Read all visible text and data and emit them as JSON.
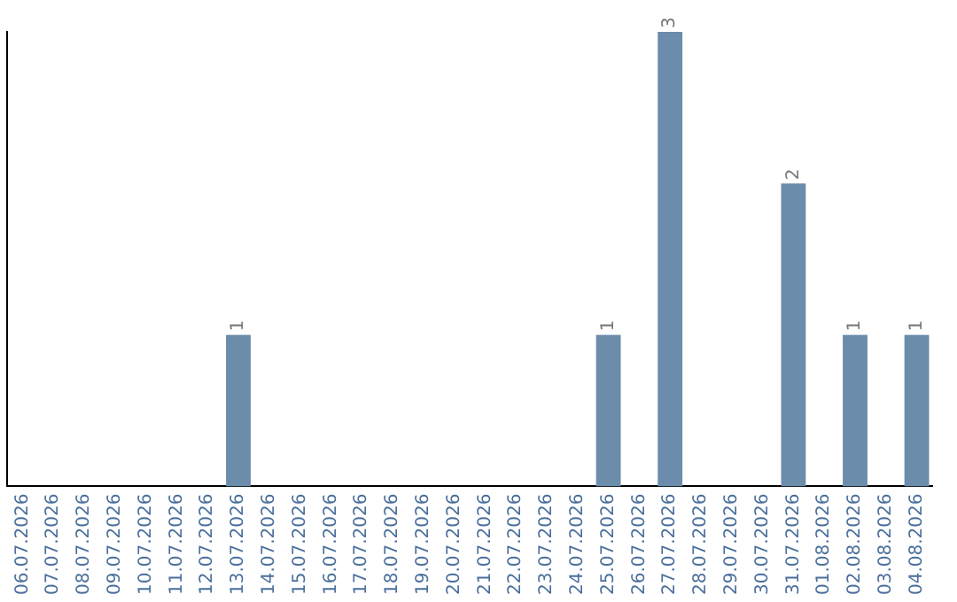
{
  "chart_data": {
    "type": "bar",
    "categories": [
      "06.07.2026",
      "07.07.2026",
      "08.07.2026",
      "09.07.2026",
      "10.07.2026",
      "11.07.2026",
      "12.07.2026",
      "13.07.2026",
      "14.07.2026",
      "15.07.2026",
      "16.07.2026",
      "17.07.2026",
      "18.07.2026",
      "19.07.2026",
      "20.07.2026",
      "21.07.2026",
      "22.07.2026",
      "23.07.2026",
      "24.07.2026",
      "25.07.2026",
      "26.07.2026",
      "27.07.2026",
      "28.07.2026",
      "29.07.2026",
      "30.07.2026",
      "31.07.2026",
      "01.08.2026",
      "02.08.2026",
      "03.08.2026",
      "04.08.2026"
    ],
    "values": [
      0,
      0,
      0,
      0,
      0,
      0,
      0,
      1,
      0,
      0,
      0,
      0,
      0,
      0,
      0,
      0,
      0,
      0,
      0,
      1,
      0,
      3,
      0,
      0,
      0,
      2,
      0,
      1,
      0,
      1
    ],
    "value_labels": [
      null,
      null,
      null,
      null,
      null,
      null,
      null,
      "1",
      null,
      null,
      null,
      null,
      null,
      null,
      null,
      null,
      null,
      null,
      null,
      "1",
      null,
      "3",
      null,
      null,
      null,
      "2",
      null,
      "1",
      null,
      "1"
    ],
    "color": "#6b8caa",
    "grid": false,
    "legend": false,
    "tick_labels": "x"
  }
}
